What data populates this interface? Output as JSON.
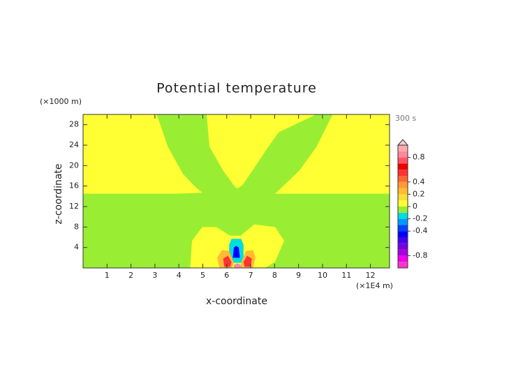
{
  "chart_data": {
    "type": "contour",
    "title": "Potential temperature",
    "x_label": "x-coordinate",
    "y_label": "z-coordinate",
    "x_unit": "(×1E4 m)",
    "y_unit": "(×1000 m)",
    "time_label": "300 s",
    "xlim": [
      0,
      12.8
    ],
    "ylim": [
      0,
      30
    ],
    "xticks": [
      1,
      2,
      3,
      4,
      5,
      6,
      7,
      8,
      9,
      10,
      11,
      12
    ],
    "yticks": [
      4,
      8,
      12,
      16,
      20,
      24,
      28
    ],
    "colorbar": {
      "lim": [
        -1,
        1
      ],
      "levels": [
        -1,
        -0.9,
        -0.8,
        -0.7,
        -0.6,
        -0.5,
        -0.4,
        -0.3,
        -0.2,
        -0.1,
        0,
        0.1,
        0.2,
        0.3,
        0.4,
        0.5,
        0.6,
        0.7,
        0.8,
        0.9,
        1
      ],
      "colors": [
        "#ff33cc",
        "#ee00ee",
        "#aa00dd",
        "#7700dd",
        "#4400ee",
        "#0000ff",
        "#0044ff",
        "#0099ff",
        "#00dddd",
        "#99ee33",
        "#ffff33",
        "#ffdd33",
        "#ffbb33",
        "#ff9933",
        "#ff6633",
        "#ff3333",
        "#ee0000",
        "#ff5566",
        "#ff8899",
        "#ffaaaa"
      ],
      "over_color": "#ffcccc",
      "ticks": [
        -0.8,
        -0.4,
        -0.2,
        0,
        0.2,
        0.4,
        0.8
      ]
    },
    "regions": [
      {
        "level": -0.1,
        "points": [
          [
            0,
            0
          ],
          [
            12.8,
            0
          ],
          [
            12.8,
            30
          ],
          [
            0,
            30
          ]
        ]
      },
      {
        "level": 0,
        "points": [
          [
            0,
            30
          ],
          [
            3.08,
            30
          ],
          [
            3.54,
            23.7
          ],
          [
            4.18,
            18.3
          ],
          [
            4.7,
            15.8
          ],
          [
            4.98,
            14.7
          ],
          [
            3.83,
            14.5
          ],
          [
            0,
            14.5
          ]
        ]
      },
      {
        "level": 0,
        "points": [
          [
            5.16,
            30
          ],
          [
            5.28,
            23.7
          ],
          [
            5.85,
            19
          ],
          [
            6.29,
            16.2
          ],
          [
            6.43,
            15.5
          ],
          [
            6.66,
            16.2
          ],
          [
            7.07,
            19
          ],
          [
            7.74,
            23.7
          ],
          [
            8.17,
            26.5
          ],
          [
            9.73,
            30
          ]
        ]
      },
      {
        "level": 0,
        "points": [
          [
            10.42,
            30
          ],
          [
            12.8,
            30
          ],
          [
            12.8,
            14.5
          ],
          [
            8.02,
            14.5
          ],
          [
            8.31,
            15.8
          ],
          [
            9.03,
            19
          ],
          [
            9.75,
            23.7
          ]
        ]
      },
      {
        "level": 0,
        "points": [
          [
            4.47,
            0
          ],
          [
            4.55,
            5.3
          ],
          [
            4.98,
            8
          ],
          [
            5.56,
            8
          ],
          [
            6.14,
            6.3
          ],
          [
            6.58,
            6.3
          ],
          [
            7.15,
            8.5
          ],
          [
            8.02,
            8
          ],
          [
            8.4,
            5.3
          ],
          [
            8.02,
            1.2
          ],
          [
            7.6,
            0
          ]
        ]
      },
      {
        "level": -0.2,
        "points": [
          [
            6.1,
            1
          ],
          [
            6.1,
            4.5
          ],
          [
            6.2,
            5.7
          ],
          [
            6.6,
            5.7
          ],
          [
            6.7,
            4.5
          ],
          [
            6.7,
            1
          ]
        ]
      },
      {
        "level": -0.5,
        "points": [
          [
            6.25,
            2
          ],
          [
            6.3,
            4
          ],
          [
            6.4,
            4.3
          ],
          [
            6.5,
            4
          ],
          [
            6.55,
            2
          ]
        ]
      },
      {
        "level": 0.2,
        "points": [
          [
            5.7,
            0
          ],
          [
            5.6,
            2
          ],
          [
            5.8,
            3.5
          ],
          [
            6.1,
            3.3
          ],
          [
            6.3,
            1
          ],
          [
            6.2,
            0
          ]
        ]
      },
      {
        "level": 0.2,
        "points": [
          [
            6.6,
            0
          ],
          [
            6.6,
            1
          ],
          [
            6.8,
            3.3
          ],
          [
            7.1,
            3.5
          ],
          [
            7.2,
            2
          ],
          [
            7.1,
            0
          ]
        ]
      },
      {
        "level": 0.5,
        "points": [
          [
            5.9,
            0.2
          ],
          [
            5.85,
            1.8
          ],
          [
            6.05,
            2.4
          ],
          [
            6.2,
            1.2
          ],
          [
            6.15,
            0.2
          ]
        ]
      },
      {
        "level": 0.5,
        "points": [
          [
            6.75,
            0.2
          ],
          [
            6.7,
            1.2
          ],
          [
            6.85,
            2.4
          ],
          [
            7.05,
            1.8
          ],
          [
            7,
            0.2
          ]
        ]
      },
      {
        "level": 0.8,
        "points": [
          [
            6.3,
            0
          ],
          [
            6.3,
            0.6
          ],
          [
            6.45,
            0.9
          ],
          [
            6.6,
            0.6
          ],
          [
            6.6,
            0
          ]
        ]
      }
    ]
  }
}
